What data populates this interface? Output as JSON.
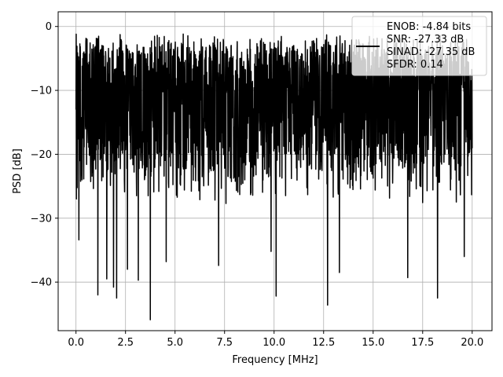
{
  "chart_data": {
    "type": "line",
    "title": "",
    "xlabel": "Frequency [MHz]",
    "ylabel": "PSD [dB]",
    "xlim": [
      -0.9,
      21.0
    ],
    "ylim": [
      -47.6,
      2.3
    ],
    "xticks": [
      0.0,
      2.5,
      5.0,
      7.5,
      10.0,
      12.5,
      15.0,
      17.5,
      20.0
    ],
    "xtick_labels": [
      "0.0",
      "2.5",
      "5.0",
      "7.5",
      "10.0",
      "12.5",
      "15.0",
      "17.5",
      "20.0"
    ],
    "yticks": [
      0,
      -10,
      -20,
      -30,
      -40
    ],
    "ytick_labels": [
      "0",
      "−10",
      "−20",
      "−30",
      "−40"
    ],
    "grid": true,
    "legend_position": "top-right",
    "legend_lines": [
      "ENOB: -4.84 bits",
      "SNR: -27.33 dB",
      "SINAD: -27.35 dB",
      "SFDR: 0.14"
    ],
    "series": [
      {
        "color": "#000000",
        "x_range": [
          0.0,
          20.0
        ],
        "points": 2048,
        "band_upper_db": [
          -3,
          -1
        ],
        "band_lower_db": [
          -28,
          -16
        ],
        "dips": [
          {
            "x": 0.15,
            "y": -33.4
          },
          {
            "x": 1.1,
            "y": -42.0
          },
          {
            "x": 1.55,
            "y": -39.5
          },
          {
            "x": 1.9,
            "y": -40.8
          },
          {
            "x": 2.05,
            "y": -42.5
          },
          {
            "x": 2.6,
            "y": -38.0
          },
          {
            "x": 3.15,
            "y": -39.7
          },
          {
            "x": 3.75,
            "y": -45.9
          },
          {
            "x": 4.55,
            "y": -36.8
          },
          {
            "x": 7.2,
            "y": -37.4
          },
          {
            "x": 9.85,
            "y": -35.2
          },
          {
            "x": 10.1,
            "y": -42.2
          },
          {
            "x": 12.7,
            "y": -43.6
          },
          {
            "x": 13.3,
            "y": -38.5
          },
          {
            "x": 16.75,
            "y": -39.3
          },
          {
            "x": 18.25,
            "y": -42.5
          },
          {
            "x": 19.6,
            "y": -36.0
          }
        ]
      }
    ]
  }
}
